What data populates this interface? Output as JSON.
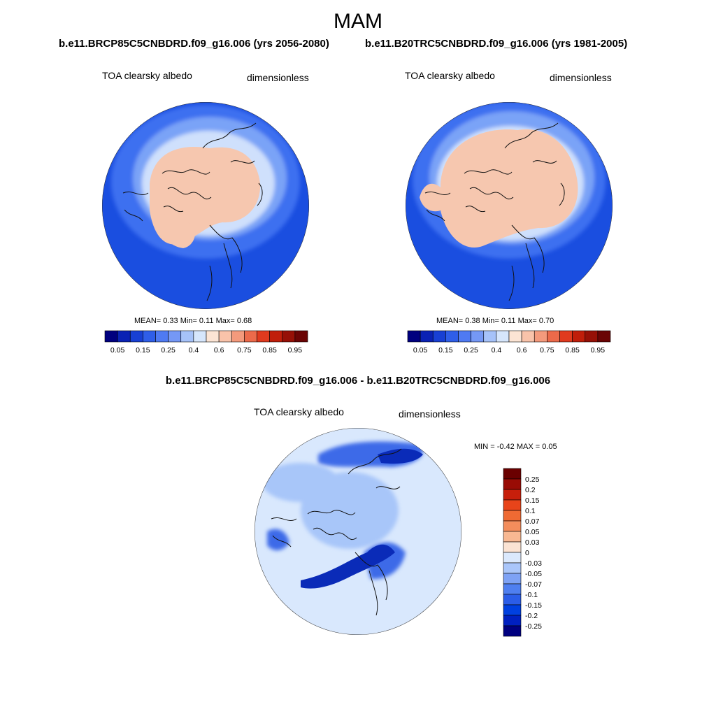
{
  "title": "MAM",
  "panels": [
    {
      "case_title": "b.e11.BRCP85C5CNBDRD.f09_g16.006 (yrs 2056-2080)",
      "field": "TOA clearsky albedo",
      "units": "dimensionless",
      "stats": {
        "mean": "0.33",
        "min": "0.11",
        "max": "0.68",
        "text": "MEAN=   0.33  Min=   0.11  Max=   0.68"
      }
    },
    {
      "case_title": "b.e11.B20TRC5CNBDRD.f09_g16.006 (yrs 1981-2005)",
      "field": "TOA clearsky albedo",
      "units": "dimensionless",
      "stats": {
        "mean": "0.38",
        "min": "0.11",
        "max": "0.70",
        "text": "MEAN=   0.38  Min=   0.11  Max=   0.70"
      }
    }
  ],
  "difference": {
    "title": "b.e11.BRCP85C5CNBDRD.f09_g16.006 - b.e11.B20TRC5CNBDRD.f09_g16.006",
    "field": "TOA clearsky albedo",
    "units": "dimensionless",
    "stats": {
      "min": "-0.42",
      "max": "0.05",
      "text": "MIN =  -0.42 MAX =   0.05"
    }
  },
  "colorbar_abs": {
    "colors": [
      "#00007f",
      "#0a22b4",
      "#1840d4",
      "#2f5ee8",
      "#4f7af2",
      "#7598f5",
      "#a6c2f9",
      "#d6e6fc",
      "#fce4d4",
      "#f9c3aa",
      "#f49a7c",
      "#ec6a4a",
      "#e03a1e",
      "#c01e0a",
      "#961006",
      "#6a0404"
    ],
    "labels": [
      "0.05",
      "0.15",
      "0.25",
      "0.4",
      "0.6",
      "0.75",
      "0.85",
      "0.95"
    ]
  },
  "colorbar_diff": {
    "colors": [
      "#000080",
      "#0020c0",
      "#0040e0",
      "#2b5de8",
      "#4f7ff0",
      "#7ea2f5",
      "#aac6fa",
      "#dbe9fd",
      "#fbe3d3",
      "#f8b892",
      "#f38d5c",
      "#ef6a33",
      "#e8441a",
      "#c71f0b",
      "#990c05",
      "#6a0000"
    ],
    "labels": [
      "0.25",
      "0.2",
      "0.15",
      "0.1",
      "0.07",
      "0.05",
      "0.03",
      "0",
      "-0.03",
      "-0.05",
      "-0.07",
      "-0.1",
      "-0.15",
      "-0.2",
      "-0.25"
    ]
  },
  "map_colors": {
    "ocean_deep": "#1a4ee0",
    "ocean_mid": "#3d6ff0",
    "ocean_light": "#7aa3f7",
    "ice_edge": "#cfe0fc",
    "ice": "#f6c7af",
    "diff_bg": "#d9e8fd",
    "diff_mid": "#a8c6f9",
    "diff_strong": "#3c6ae8",
    "diff_max": "#0a2bb8",
    "coast": "#111111"
  }
}
